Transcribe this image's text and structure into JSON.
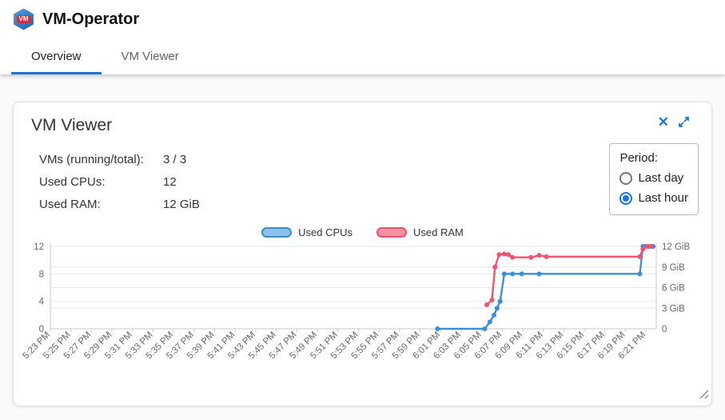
{
  "colors": {
    "accent": "#1976d2"
  },
  "icons": {
    "close": "✕"
  },
  "header": {
    "logo_text": "VM",
    "app_title": "VM-Operator"
  },
  "tabs": [
    {
      "label": "Overview",
      "active": true
    },
    {
      "label": "VM Viewer",
      "active": false
    }
  ],
  "panel": {
    "title": "VM Viewer",
    "stats": [
      {
        "label": "VMs (running/total):",
        "value": "3 / 3"
      },
      {
        "label": "Used CPUs:",
        "value": "12"
      },
      {
        "label": "Used RAM:",
        "value": "12 GiB"
      }
    ],
    "period": {
      "label": "Period:",
      "options": [
        {
          "label": "Last day",
          "selected": false
        },
        {
          "label": "Last hour",
          "selected": true
        }
      ]
    }
  },
  "chart_data": {
    "type": "line",
    "title": "",
    "legend_position": "top",
    "x_axis": {
      "unit": "minutes since 5:23 PM",
      "tick_start_minute": 0,
      "tick_step_minutes": 2,
      "max_minutes": 59,
      "tick_labels": [
        "5:23 PM",
        "5:25 PM",
        "5:27 PM",
        "5:29 PM",
        "5:31 PM",
        "5:33 PM",
        "5:35 PM",
        "5:37 PM",
        "5:39 PM",
        "5:41 PM",
        "5:43 PM",
        "5:45 PM",
        "5:47 PM",
        "5:49 PM",
        "5:51 PM",
        "5:53 PM",
        "5:55 PM",
        "5:57 PM",
        "5:59 PM",
        "6:01 PM",
        "6:03 PM",
        "6:05 PM",
        "6:07 PM",
        "6:09 PM",
        "6:11 PM",
        "6:13 PM",
        "6:15 PM",
        "6:17 PM",
        "6:19 PM",
        "6:21 PM"
      ]
    },
    "y_axis_left": {
      "series": "Used CPUs",
      "ticks": [
        0,
        4,
        8,
        12
      ],
      "max": 12
    },
    "y_axis_right": {
      "series": "Used RAM",
      "values": [
        0,
        3,
        6,
        9,
        12
      ],
      "labels": [
        "0",
        "3 GiB",
        "6 GiB",
        "9 GiB",
        "12 GiB"
      ],
      "max": 12
    },
    "legend": [
      {
        "name": "Used CPUs",
        "fill": "#8cbfea",
        "stroke": "#3a8cd0"
      },
      {
        "name": "Used RAM",
        "fill": "#f792a6",
        "stroke": "#ef4f6e"
      }
    ],
    "series": [
      {
        "name": "Used CPUs",
        "axis": "left",
        "unit": "CPUs",
        "color": "#3a8fd9",
        "points": [
          [
            37.7,
            0
          ],
          [
            42.3,
            0
          ],
          [
            42.8,
            1
          ],
          [
            43.2,
            2
          ],
          [
            43.5,
            3
          ],
          [
            43.8,
            4
          ],
          [
            44.2,
            8
          ],
          [
            45.0,
            8
          ],
          [
            45.9,
            8
          ],
          [
            47.6,
            8
          ],
          [
            57.4,
            8
          ],
          [
            57.7,
            12
          ],
          [
            57.9,
            12
          ],
          [
            58.3,
            12
          ],
          [
            58.7,
            12
          ]
        ]
      },
      {
        "name": "Used RAM",
        "axis": "right",
        "unit": "GiB",
        "color": "#f1536f",
        "points": [
          [
            42.5,
            3.5
          ],
          [
            43.0,
            4.2
          ],
          [
            43.3,
            9.0
          ],
          [
            43.7,
            10.8
          ],
          [
            44.2,
            10.9
          ],
          [
            44.6,
            10.8
          ],
          [
            45.0,
            10.4
          ],
          [
            46.8,
            10.4
          ],
          [
            47.6,
            10.7
          ],
          [
            48.3,
            10.5
          ],
          [
            57.4,
            10.5
          ],
          [
            57.7,
            11.6
          ],
          [
            58.1,
            12
          ],
          [
            58.5,
            12
          ]
        ]
      }
    ]
  }
}
